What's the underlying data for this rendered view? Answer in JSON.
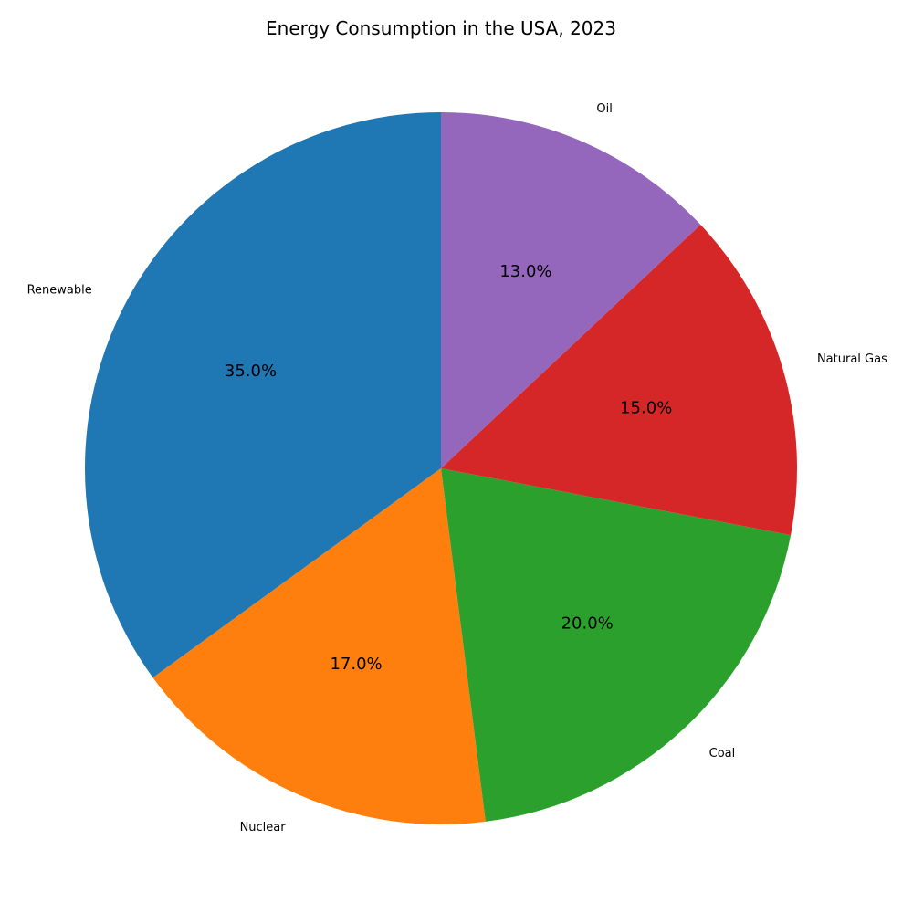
{
  "chart_data": {
    "type": "pie",
    "title": "Energy Consumption in the USA, 2023",
    "categories": [
      "Renewable",
      "Nuclear",
      "Coal",
      "Natural Gas",
      "Oil"
    ],
    "values": [
      35.0,
      17.0,
      20.0,
      15.0,
      13.0
    ],
    "percent_labels": [
      "35.0%",
      "17.0%",
      "20.0%",
      "15.0%",
      "13.0%"
    ],
    "colors": [
      "#1f77b4",
      "#ff7f0e",
      "#2ca02c",
      "#d62728",
      "#9467bd"
    ],
    "start_angle": 90,
    "direction": "counterclockwise",
    "legend": "none"
  }
}
